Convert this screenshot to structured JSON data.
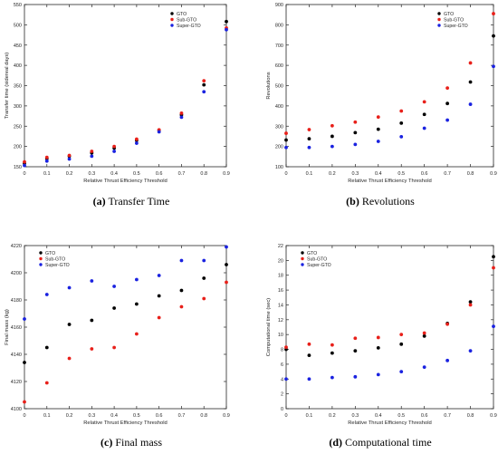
{
  "chart_data": [
    {
      "type": "scatter",
      "caption": {
        "letter": "(a)",
        "text": "Transfer Time"
      },
      "xlabel": "Relative Thrust Efficiency Threshold",
      "ylabel": "Transfer time (sidereal days)",
      "xlim": [
        0,
        0.9
      ],
      "ylim": [
        150,
        550
      ],
      "xticks": [
        0,
        0.1,
        0.2,
        0.3,
        0.4,
        0.5,
        0.6,
        0.7,
        0.8,
        0.9
      ],
      "xtick_labels": [
        "0",
        "0.1",
        "0.2",
        "0.3",
        "0.4",
        "0.5",
        "0.6",
        "0.7",
        "0.8",
        "0.9"
      ],
      "yticks": [
        150,
        200,
        250,
        300,
        350,
        400,
        450,
        500,
        550
      ],
      "ytick_labels": [
        "150",
        "200",
        "250",
        "300",
        "350",
        "400",
        "450",
        "500",
        "550"
      ],
      "legend_position": "top-right",
      "grid": false,
      "x": [
        0,
        0.1,
        0.2,
        0.3,
        0.4,
        0.5,
        0.6,
        0.7,
        0.8,
        0.9
      ],
      "series": [
        {
          "name": "GTO",
          "color": "#000000",
          "values": [
            158,
            170,
            176,
            184,
            196,
            215,
            240,
            278,
            352,
            508
          ]
        },
        {
          "name": "Sub-GTO",
          "color": "#e8201a",
          "values": [
            162,
            173,
            178,
            188,
            200,
            218,
            241,
            282,
            362,
            492
          ]
        },
        {
          "name": "Super-GTO",
          "color": "#1a22e0",
          "values": [
            153,
            164,
            169,
            176,
            188,
            208,
            236,
            272,
            335,
            488
          ]
        }
      ]
    },
    {
      "type": "scatter",
      "caption": {
        "letter": "(b)",
        "text": "Revolutions"
      },
      "xlabel": "Relative Thrust Efficiency Threshold",
      "ylabel": "Revolutions",
      "xlim": [
        0,
        0.9
      ],
      "ylim": [
        100,
        900
      ],
      "xticks": [
        0,
        0.1,
        0.2,
        0.3,
        0.4,
        0.5,
        0.6,
        0.7,
        0.8,
        0.9
      ],
      "xtick_labels": [
        "0",
        "0.1",
        "0.2",
        "0.3",
        "0.4",
        "0.5",
        "0.6",
        "0.7",
        "0.8",
        "0.9"
      ],
      "yticks": [
        100,
        200,
        300,
        400,
        500,
        600,
        700,
        800,
        900
      ],
      "ytick_labels": [
        "100",
        "200",
        "300",
        "400",
        "500",
        "600",
        "700",
        "800",
        "900"
      ],
      "legend_position": "top-right",
      "grid": false,
      "x": [
        0,
        0.1,
        0.2,
        0.3,
        0.4,
        0.5,
        0.6,
        0.7,
        0.8,
        0.9
      ],
      "series": [
        {
          "name": "GTO",
          "color": "#000000",
          "values": [
            232,
            238,
            250,
            268,
            285,
            315,
            358,
            412,
            518,
            745
          ]
        },
        {
          "name": "Sub-GTO",
          "color": "#e8201a",
          "values": [
            265,
            283,
            302,
            320,
            345,
            375,
            420,
            488,
            612,
            855
          ]
        },
        {
          "name": "Super-GTO",
          "color": "#1a22e0",
          "values": [
            195,
            195,
            200,
            210,
            225,
            248,
            290,
            330,
            408,
            595
          ]
        }
      ]
    },
    {
      "type": "scatter",
      "caption": {
        "letter": "(c)",
        "text": "Final mass"
      },
      "xlabel": "Relative Thrust Efficiency Threshold",
      "ylabel": "Final mass (kg)",
      "xlim": [
        0,
        0.9
      ],
      "ylim": [
        4100,
        4220
      ],
      "xticks": [
        0,
        0.1,
        0.2,
        0.3,
        0.4,
        0.5,
        0.6,
        0.7,
        0.8,
        0.9
      ],
      "xtick_labels": [
        "0",
        "0.1",
        "0.2",
        "0.3",
        "0.4",
        "0.5",
        "0.6",
        "0.7",
        "0.8",
        "0.9"
      ],
      "yticks": [
        4100,
        4120,
        4140,
        4160,
        4180,
        4200,
        4220
      ],
      "ytick_labels": [
        "4100",
        "4120",
        "4140",
        "4160",
        "4180",
        "4200",
        "4220"
      ],
      "legend_position": "top-left",
      "grid": false,
      "x": [
        0,
        0.1,
        0.2,
        0.3,
        0.4,
        0.5,
        0.6,
        0.7,
        0.8,
        0.9
      ],
      "series": [
        {
          "name": "GTO",
          "color": "#000000",
          "values": [
            4134,
            4145,
            4162,
            4165,
            4174,
            4177,
            4183,
            4187,
            4196,
            4206
          ]
        },
        {
          "name": "Sub-GTO",
          "color": "#e8201a",
          "values": [
            4105,
            4119,
            4137,
            4144,
            4145,
            4155,
            4167,
            4175,
            4181,
            4193
          ]
        },
        {
          "name": "Super-GTO",
          "color": "#1a22e0",
          "values": [
            4166,
            4184,
            4189,
            4194,
            4190,
            4195,
            4198,
            4209,
            4209,
            4219
          ]
        }
      ]
    },
    {
      "type": "scatter",
      "caption": {
        "letter": "(d)",
        "text": "Computational time"
      },
      "xlabel": "Relative Thrust Efficiency Threshold",
      "ylabel": "Computational time (sec)",
      "xlim": [
        0,
        0.9
      ],
      "ylim": [
        0,
        22
      ],
      "xticks": [
        0,
        0.1,
        0.2,
        0.3,
        0.4,
        0.5,
        0.6,
        0.7,
        0.8,
        0.9
      ],
      "xtick_labels": [
        "0",
        "0.1",
        "0.2",
        "0.3",
        "0.4",
        "0.5",
        "0.6",
        "0.7",
        "0.8",
        "0.9"
      ],
      "yticks": [
        0,
        2,
        4,
        6,
        8,
        10,
        12,
        14,
        16,
        18,
        20,
        22
      ],
      "ytick_labels": [
        "0",
        "2",
        "4",
        "6",
        "8",
        "10",
        "12",
        "14",
        "16",
        "18",
        "20",
        "22"
      ],
      "legend_position": "top-left",
      "grid": false,
      "x": [
        0,
        0.1,
        0.2,
        0.3,
        0.4,
        0.5,
        0.6,
        0.7,
        0.8,
        0.9
      ],
      "series": [
        {
          "name": "GTO",
          "color": "#000000",
          "values": [
            8.0,
            7.2,
            7.5,
            7.8,
            8.2,
            8.7,
            9.8,
            11.5,
            14.4,
            20.5
          ]
        },
        {
          "name": "Sub-GTO",
          "color": "#e8201a",
          "values": [
            8.3,
            8.7,
            8.6,
            9.5,
            9.6,
            10.0,
            10.2,
            11.4,
            14.0,
            19.0
          ]
        },
        {
          "name": "Super-GTO",
          "color": "#1a22e0",
          "values": [
            4.0,
            4.0,
            4.2,
            4.3,
            4.6,
            5.0,
            5.6,
            6.5,
            7.8,
            11.1
          ]
        }
      ]
    }
  ]
}
